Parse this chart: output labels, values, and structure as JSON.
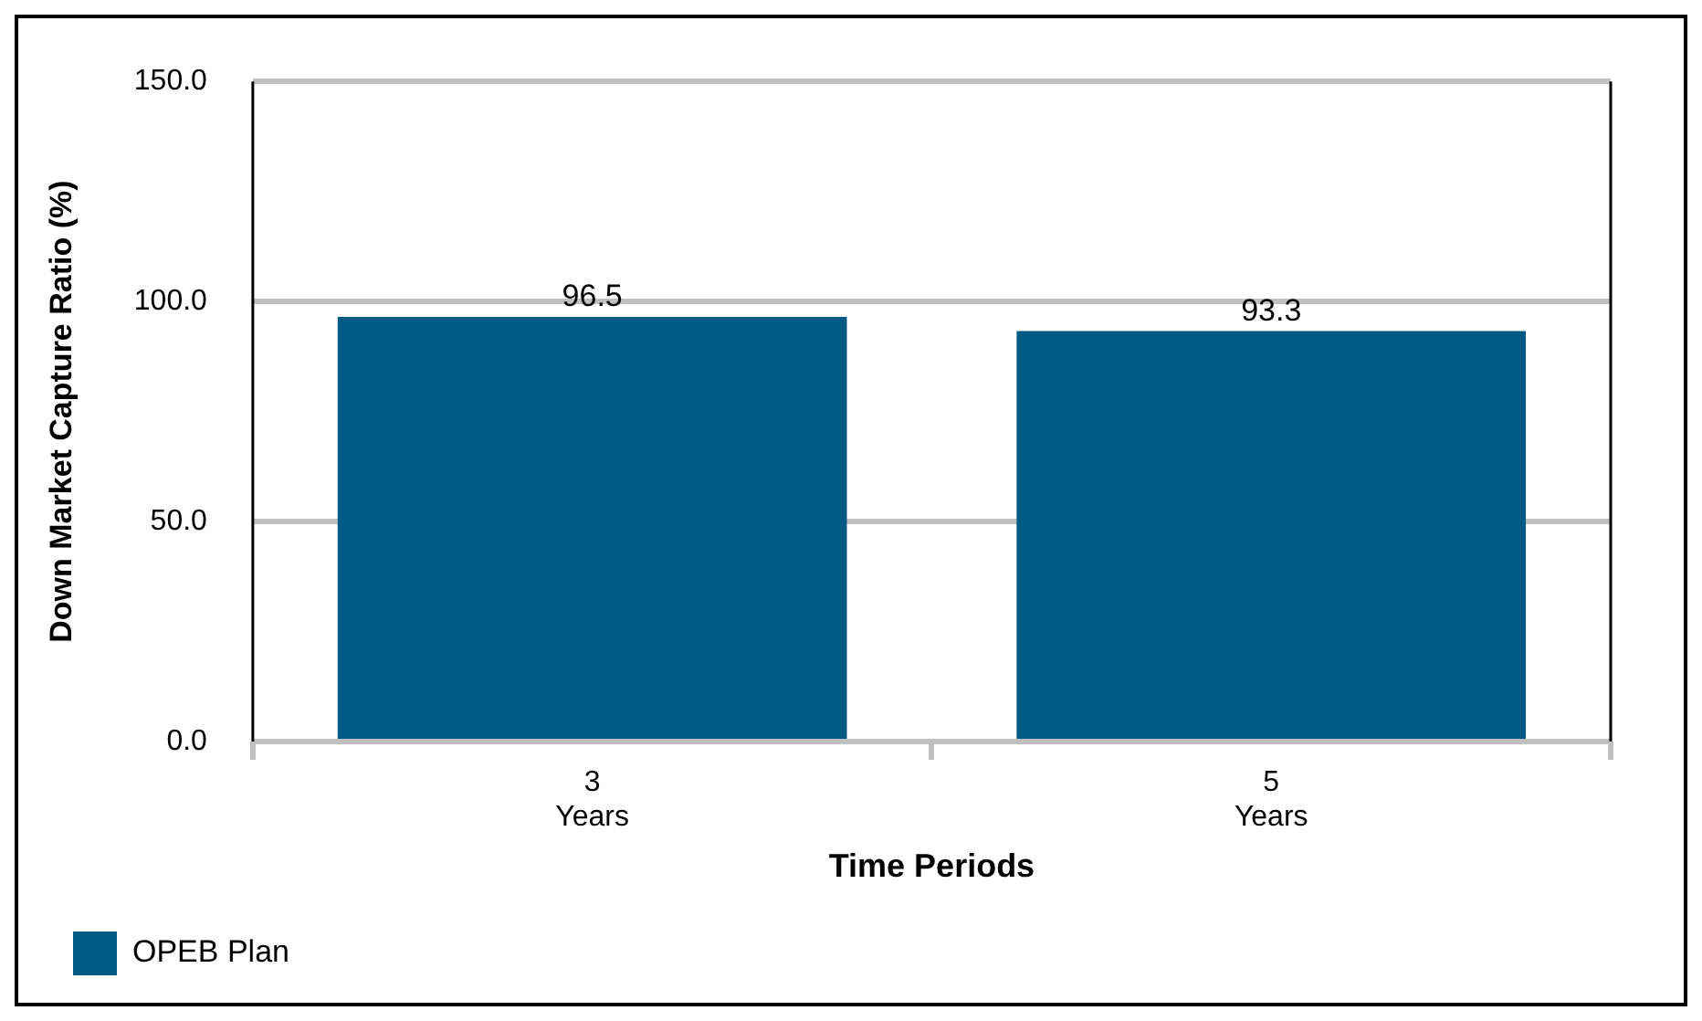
{
  "chart_data": {
    "type": "bar",
    "xlabel": "Time Periods",
    "ylabel": "Down Market Capture Ratio (%)",
    "categories": [
      "3\nYears",
      "5\nYears"
    ],
    "series": [
      {
        "name": "OPEB Plan",
        "color": "#005a84",
        "values": [
          96.5,
          93.3
        ]
      }
    ],
    "ylim": [
      0,
      150
    ],
    "yticks": [
      {
        "value": 0,
        "label": "0.0"
      },
      {
        "value": 50,
        "label": "50.0"
      },
      {
        "value": 100,
        "label": "100.0"
      },
      {
        "value": 150,
        "label": "150.0"
      }
    ],
    "grid": "y",
    "legend": "bottom left",
    "data_labels": true
  }
}
